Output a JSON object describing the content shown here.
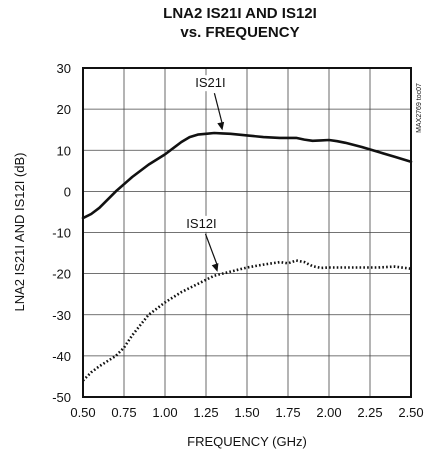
{
  "chart_data": {
    "type": "line",
    "title_lines": [
      "LNA2 IS21I AND IS12I",
      "vs. FREQUENCY"
    ],
    "xlabel": "FREQUENCY (GHz)",
    "ylabel": "LNA2 IS21I AND IS12I (dB)",
    "xlim": [
      0.5,
      2.5
    ],
    "ylim": [
      -50,
      30
    ],
    "x_ticks": [
      0.5,
      0.75,
      1.0,
      1.25,
      1.5,
      1.75,
      2.0,
      2.25,
      2.5
    ],
    "x_tick_labels": [
      "0.50",
      "0.75",
      "1.00",
      "1.25",
      "1.50",
      "1.75",
      "2.00",
      "2.25",
      "2.50"
    ],
    "y_ticks": [
      30,
      20,
      10,
      0,
      -10,
      -20,
      -30,
      -40,
      -50
    ],
    "y_tick_labels": [
      "30",
      "20",
      "10",
      "0",
      "-10",
      "-20",
      "-30",
      "-40",
      "-50"
    ],
    "grid": true,
    "watermark": "MAX2769 toc07",
    "series": [
      {
        "name": "IS21I",
        "style": "solid",
        "x": [
          0.5,
          0.55,
          0.6,
          0.7,
          0.8,
          0.9,
          1.0,
          1.05,
          1.1,
          1.15,
          1.2,
          1.25,
          1.3,
          1.35,
          1.4,
          1.5,
          1.6,
          1.7,
          1.8,
          1.85,
          1.9,
          1.95,
          2.0,
          2.05,
          2.1,
          2.2,
          2.3,
          2.4,
          2.5
        ],
        "y": [
          -6.5,
          -5.5,
          -4,
          0,
          3.5,
          6.5,
          9,
          10.5,
          12,
          13.2,
          13.8,
          14,
          14.2,
          14.1,
          14,
          13.6,
          13.2,
          13,
          13,
          12.6,
          12.3,
          12.4,
          12.5,
          12.2,
          11.8,
          10.8,
          9.6,
          8.4,
          7.2
        ]
      },
      {
        "name": "IS12I",
        "style": "dotted",
        "x": [
          0.5,
          0.55,
          0.6,
          0.7,
          0.75,
          0.8,
          0.85,
          0.9,
          1.0,
          1.1,
          1.2,
          1.3,
          1.4,
          1.5,
          1.6,
          1.7,
          1.75,
          1.8,
          1.85,
          1.9,
          1.95,
          2.0,
          2.1,
          2.2,
          2.3,
          2.4,
          2.5
        ],
        "y": [
          -46,
          -44,
          -42.5,
          -40,
          -38,
          -35,
          -32.5,
          -30,
          -27,
          -24.5,
          -22.5,
          -20.5,
          -19.5,
          -18.5,
          -17.8,
          -17.2,
          -17.5,
          -16.8,
          -17.2,
          -18.2,
          -18.6,
          -18.5,
          -18.5,
          -18.5,
          -18.5,
          -18.3,
          -18.8
        ]
      }
    ],
    "annotations": [
      {
        "text": "IS21I",
        "points_to_series": "IS21I",
        "at_x": 1.35
      },
      {
        "text": "IS12I",
        "points_to_series": "IS12I",
        "at_x": 1.32
      }
    ]
  }
}
